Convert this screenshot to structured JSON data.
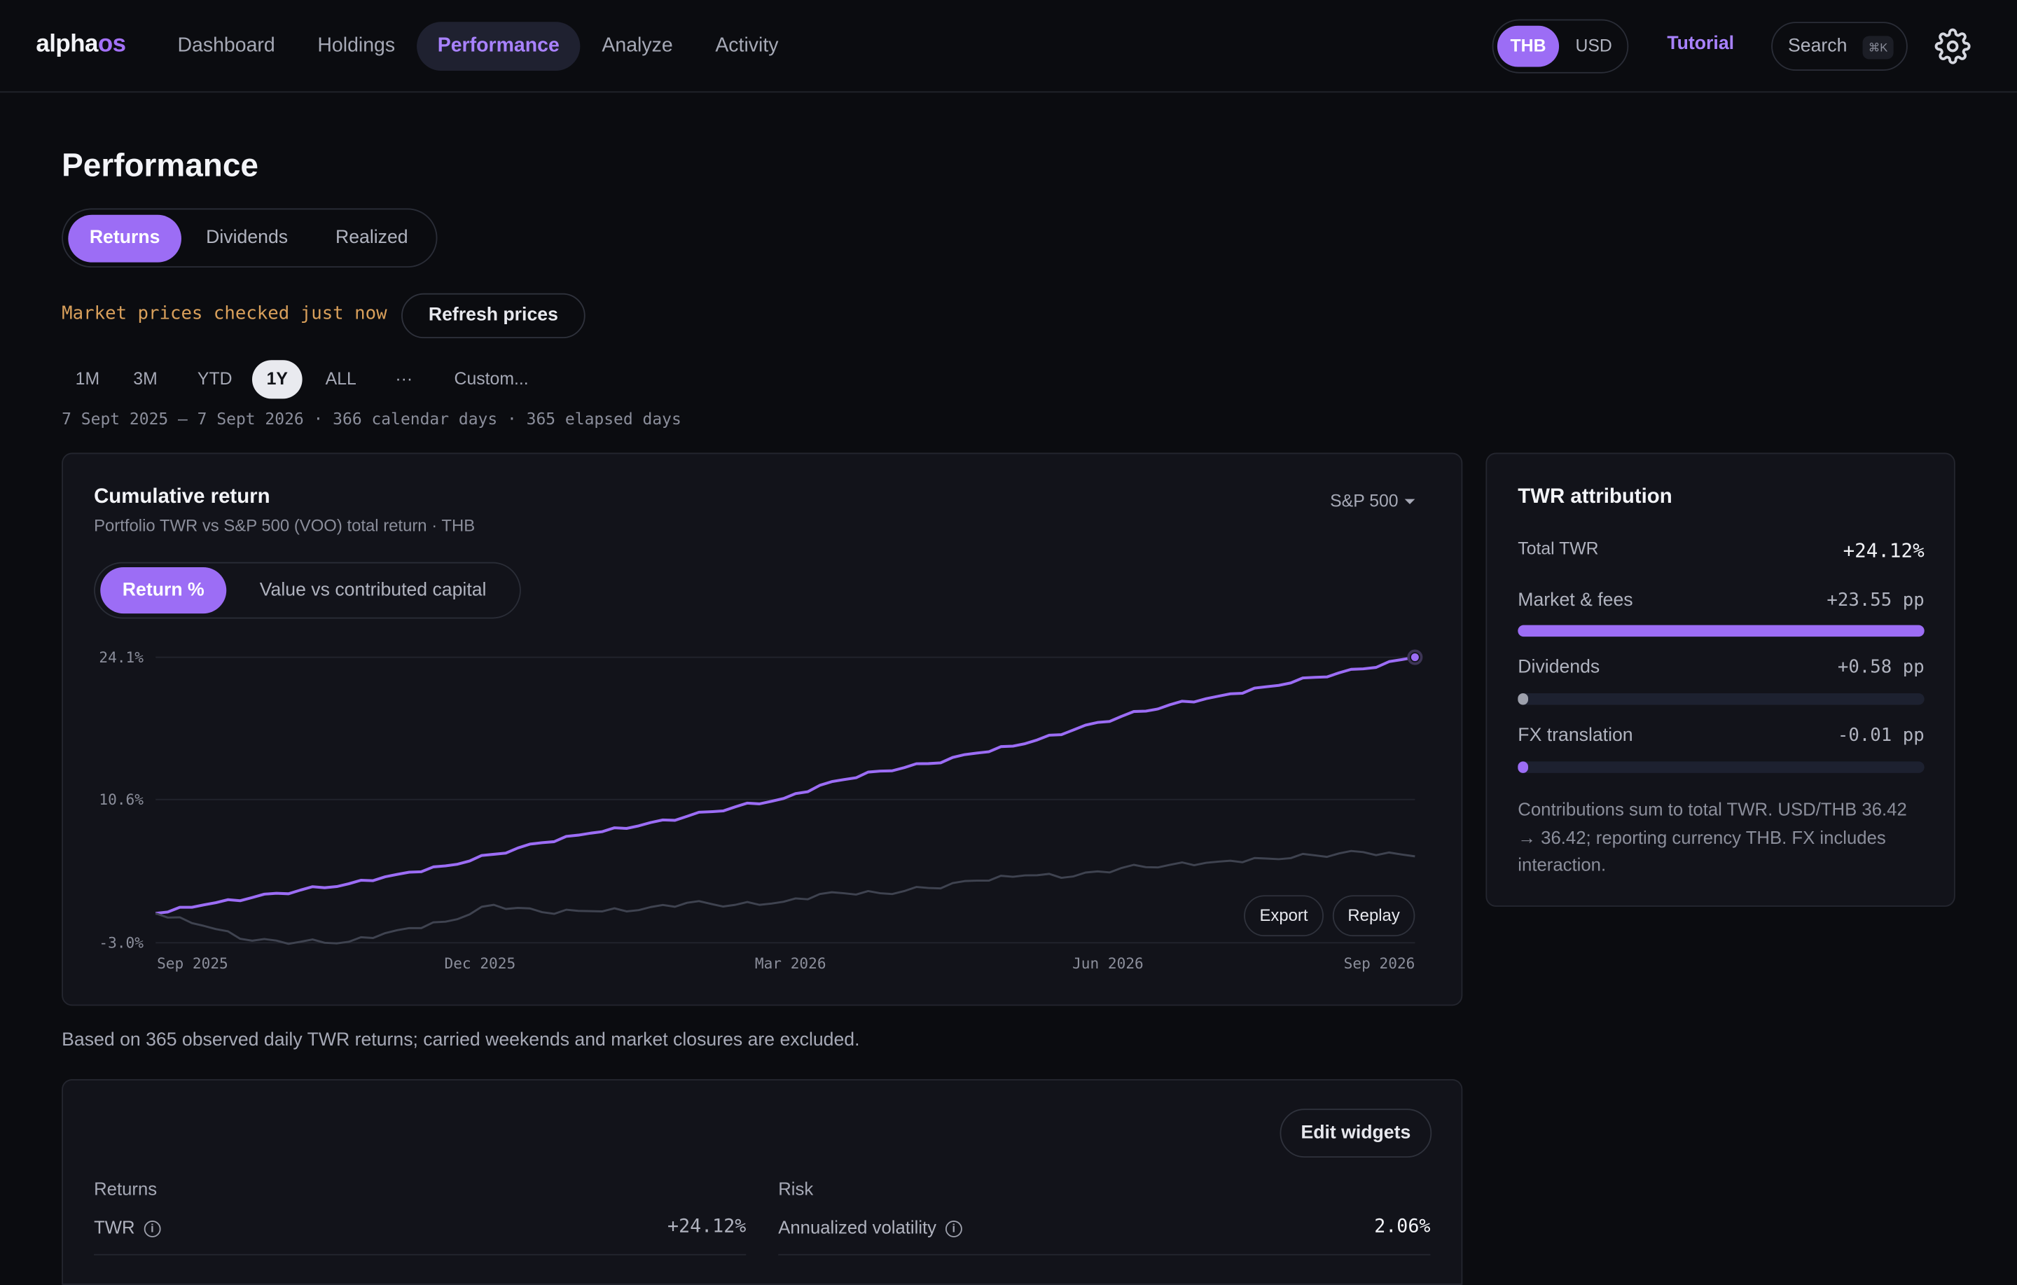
{
  "app": {
    "logo_a": "alpha",
    "logo_b": "os"
  },
  "nav": [
    "Dashboard",
    "Holdings",
    "Performance",
    "Analyze",
    "Activity"
  ],
  "nav_active": "Performance",
  "currency": {
    "options": [
      "THB",
      "USD"
    ],
    "selected": "THB"
  },
  "header": {
    "tutorial": "Tutorial",
    "search": "Search",
    "search_kbd": "⌘K"
  },
  "page": {
    "title": "Performance",
    "tabs": [
      "Returns",
      "Dividends",
      "Realized"
    ],
    "tab_selected": "Returns",
    "market_status": "Market prices checked just now",
    "refresh": "Refresh prices",
    "ranges": [
      "1M",
      "3M",
      "YTD",
      "1Y",
      "ALL",
      "···",
      "Custom..."
    ],
    "range_selected": "1Y",
    "date_line": "7 Sept 2025 – 7 Sept 2026 · 366 calendar days · 365 elapsed days"
  },
  "chart_card": {
    "title": "Cumulative return",
    "subtitle": "Portfolio TWR vs S&P 500 (VOO) total return · THB",
    "benchmark": "S&P 500",
    "modes": [
      "Return %",
      "Value vs contributed capital"
    ],
    "mode_selected": "Return %",
    "export": "Export",
    "replay": "Replay"
  },
  "chart_data": {
    "type": "line",
    "x": [
      "2025-09-07",
      "2025-09-21",
      "2025-10-05",
      "2025-10-19",
      "2025-11-02",
      "2025-11-16",
      "2025-11-30",
      "2025-12-14",
      "2025-12-28",
      "2026-01-11",
      "2026-01-25",
      "2026-02-08",
      "2026-02-22",
      "2026-03-08",
      "2026-03-22",
      "2026-04-05",
      "2026-04-19",
      "2026-05-03",
      "2026-05-17",
      "2026-05-31",
      "2026-06-14",
      "2026-06-28",
      "2026-07-12",
      "2026-07-26",
      "2026-08-09",
      "2026-08-23",
      "2026-09-07"
    ],
    "series": [
      {
        "color": "#9c6df5",
        "values": [
          -0.2,
          0.6,
          1.3,
          2.0,
          2.6,
          3.5,
          4.3,
          5.4,
          6.5,
          7.4,
          8.1,
          9.0,
          9.9,
          10.7,
          12.3,
          13.3,
          14.0,
          15.0,
          15.9,
          17.2,
          18.5,
          19.6,
          20.4,
          21.3,
          22.2,
          23.0,
          24.1
        ]
      },
      {
        "color": "#3f4350",
        "values": [
          -0.2,
          -1.4,
          -2.8,
          -2.9,
          -2.9,
          -1.8,
          -1.0,
          0.6,
          -0.1,
          0.0,
          0.1,
          0.8,
          0.6,
          0.9,
          1.8,
          1.7,
          2.2,
          2.9,
          3.4,
          3.3,
          4.1,
          4.4,
          4.7,
          5.0,
          5.3,
          5.6,
          5.2
        ]
      }
    ],
    "y_ticks": [
      "24.1%",
      "10.6%",
      "-3.0%"
    ],
    "x_ticks": [
      "Sep 2025",
      "Dec 2025",
      "Mar 2026",
      "Jun 2026",
      "Sep 2026"
    ],
    "ylim": [
      -3.0,
      24.1
    ],
    "grid": true
  },
  "attribution": {
    "title": "TWR attribution",
    "total_label": "Total TWR",
    "total_value": "+24.12%",
    "rows": [
      {
        "label": "Market & fees",
        "value": "+23.55 pp",
        "fraction": 1.0,
        "color": "#9c6df5"
      },
      {
        "label": "Dividends",
        "value": "+0.58 pp",
        "fraction": 0.025,
        "color": "#9da0ac"
      },
      {
        "label": "FX translation",
        "value": "-0.01 pp",
        "fraction": 0.02,
        "color": "#9c6df5"
      }
    ],
    "note": "Contributions sum to total TWR. USD/THB 36.42 → 36.42; reporting currency THB. FX includes interaction."
  },
  "footnote": "Based on 365 observed daily TWR returns; carried weekends and market closures are excluded.",
  "widgets": {
    "edit": "Edit widgets",
    "returns_label": "Returns",
    "risk_label": "Risk",
    "twr_label": "TWR",
    "twr_value": "+24.12%",
    "vol_label": "Annualized volatility",
    "vol_value": "2.06%"
  }
}
